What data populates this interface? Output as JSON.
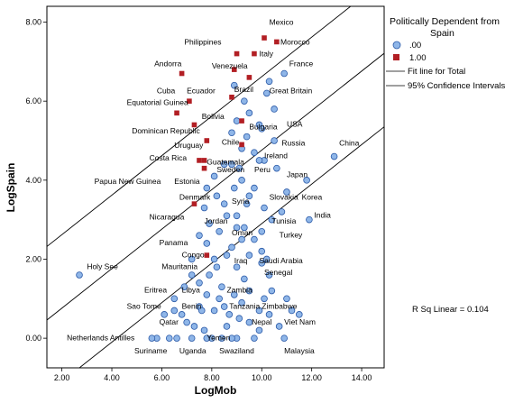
{
  "chart_data": {
    "type": "scatter",
    "xlabel": "LogMob",
    "ylabel": "LogSpain",
    "xlim": [
      1.4,
      14.9
    ],
    "ylim": [
      -0.75,
      8.4
    ],
    "x_ticks": [
      2.0,
      4.0,
      6.0,
      8.0,
      10.0,
      12.0,
      14.0
    ],
    "y_ticks": [
      0.0,
      2.0,
      4.0,
      6.0,
      8.0
    ],
    "x_tick_labels": [
      "2.00",
      "4.00",
      "6.00",
      "8.00",
      "10.00",
      "12.00",
      "14.00"
    ],
    "y_tick_labels": [
      "0.00",
      "2.00",
      "4.00",
      "6.00",
      "8.00"
    ],
    "grid": false,
    "legend_position": "top-right",
    "legend": {
      "title": "Politically Dependent from Spain",
      "entries": [
        ".00",
        "1.00"
      ],
      "lines": [
        "Fit line for Total",
        "95% Confidence Intervals"
      ]
    },
    "annotation": "R Sq Linear = 0.104",
    "colors": {
      "group_0": "#8fb6e8",
      "group_1": "#b21f24",
      "group_0_edge": "#2b5aa8"
    },
    "fit_line": {
      "slope": 0.5,
      "intercept": -0.24
    },
    "ci_offset": 1.86,
    "series": [
      {
        "name": ".00",
        "marker": "circle",
        "points": [
          [
            2.7,
            1.6
          ],
          [
            10.9,
            6.7
          ],
          [
            12.9,
            4.6
          ],
          [
            10.2,
            6.2
          ],
          [
            10.5,
            5.8
          ],
          [
            9.9,
            5.4
          ],
          [
            9.5,
            5.7
          ],
          [
            9.0,
            5.5
          ],
          [
            9.7,
            4.7
          ],
          [
            9.1,
            4.3
          ],
          [
            10.1,
            4.5
          ],
          [
            11.8,
            4.0
          ],
          [
            11.0,
            3.7
          ],
          [
            11.9,
            3.0
          ],
          [
            10.1,
            3.3
          ],
          [
            9.4,
            3.4
          ],
          [
            8.6,
            3.1
          ],
          [
            9.0,
            2.8
          ],
          [
            10.0,
            2.7
          ],
          [
            9.5,
            2.1
          ],
          [
            10.0,
            1.9
          ],
          [
            9.0,
            1.8
          ],
          [
            8.2,
            1.8
          ],
          [
            7.8,
            2.4
          ],
          [
            7.2,
            2.0
          ],
          [
            8.8,
            2.3
          ],
          [
            7.5,
            1.4
          ],
          [
            9.2,
            2.5
          ],
          [
            10.3,
            1.6
          ],
          [
            8.4,
            1.3
          ],
          [
            9.5,
            1.2
          ],
          [
            8.5,
            0.8
          ],
          [
            7.5,
            0.8
          ],
          [
            6.5,
            1.0
          ],
          [
            7.8,
            1.1
          ],
          [
            9.2,
            0.9
          ],
          [
            10.1,
            1.0
          ],
          [
            9.5,
            0.4
          ],
          [
            8.6,
            0.3
          ],
          [
            10.7,
            0.3
          ],
          [
            6.3,
            0.0
          ],
          [
            7.2,
            0.0
          ],
          [
            8.0,
            0.0
          ],
          [
            8.4,
            0.0
          ],
          [
            9.0,
            0.0
          ],
          [
            6.1,
            0.6
          ],
          [
            6.8,
            0.6
          ],
          [
            7.6,
            0.7
          ],
          [
            8.1,
            0.7
          ],
          [
            9.9,
            0.7
          ],
          [
            11.2,
            0.7
          ],
          [
            10.3,
            0.6
          ],
          [
            10.9,
            0.0
          ],
          [
            5.8,
            0.0
          ],
          [
            6.6,
            0.0
          ],
          [
            7.7,
            0.2
          ],
          [
            9.7,
            0.0
          ],
          [
            11.5,
            0.6
          ],
          [
            8.9,
            3.8
          ],
          [
            8.2,
            3.6
          ],
          [
            7.7,
            3.3
          ],
          [
            8.5,
            3.4
          ],
          [
            9.0,
            3.1
          ],
          [
            9.3,
            2.8
          ],
          [
            10.4,
            3.0
          ],
          [
            10.8,
            3.2
          ],
          [
            7.9,
            2.9
          ],
          [
            8.3,
            2.7
          ],
          [
            7.5,
            2.6
          ],
          [
            10.0,
            2.2
          ],
          [
            8.5,
            4.4
          ],
          [
            9.2,
            4.8
          ],
          [
            9.9,
            4.5
          ],
          [
            10.5,
            5.0
          ],
          [
            8.1,
            4.1
          ],
          [
            8.8,
            4.4
          ],
          [
            9.4,
            5.1
          ],
          [
            9.7,
            3.8
          ],
          [
            10.6,
            4.3
          ],
          [
            7.8,
            3.8
          ],
          [
            8.1,
            2.0
          ],
          [
            9.3,
            1.5
          ],
          [
            8.9,
            1.1
          ],
          [
            7.2,
            1.6
          ],
          [
            6.9,
            1.3
          ],
          [
            6.5,
            0.7
          ],
          [
            7.3,
            0.3
          ],
          [
            8.7,
            0.6
          ],
          [
            9.9,
            0.2
          ],
          [
            9.5,
            3.6
          ],
          [
            8.9,
            6.4
          ],
          [
            10.3,
            6.5
          ],
          [
            9.3,
            6.0
          ],
          [
            8.8,
            5.2
          ],
          [
            10.0,
            5.3
          ],
          [
            9.2,
            4.0
          ],
          [
            8.6,
            2.1
          ],
          [
            9.7,
            2.5
          ],
          [
            10.2,
            2.0
          ],
          [
            7.9,
            1.6
          ],
          [
            8.3,
            1.0
          ],
          [
            9.1,
            0.5
          ],
          [
            10.4,
            1.2
          ],
          [
            11.0,
            1.0
          ],
          [
            7.0,
            0.4
          ],
          [
            7.8,
            0.0
          ],
          [
            8.8,
            0.0
          ],
          [
            5.6,
            0.0
          ]
        ]
      },
      {
        "name": "1.00",
        "marker": "square",
        "points": [
          [
            10.1,
            7.6
          ],
          [
            10.6,
            7.5
          ],
          [
            9.0,
            7.2
          ],
          [
            9.7,
            7.2
          ],
          [
            6.8,
            6.7
          ],
          [
            8.9,
            6.8
          ],
          [
            9.5,
            6.6
          ],
          [
            7.1,
            6.0
          ],
          [
            8.8,
            6.1
          ],
          [
            6.6,
            5.7
          ],
          [
            9.2,
            5.5
          ],
          [
            7.3,
            5.4
          ],
          [
            7.8,
            5.0
          ],
          [
            9.2,
            4.9
          ],
          [
            7.5,
            4.5
          ],
          [
            7.7,
            4.5
          ],
          [
            7.7,
            4.3
          ],
          [
            7.3,
            3.4
          ],
          [
            7.8,
            2.1
          ]
        ]
      }
    ],
    "labels": [
      {
        "text": "Mexico",
        "x": 10.3,
        "y": 7.93
      },
      {
        "text": "Philippines",
        "x": 6.9,
        "y": 7.43
      },
      {
        "text": "Morocco",
        "x": 10.75,
        "y": 7.43
      },
      {
        "text": "Italy",
        "x": 9.9,
        "y": 7.13
      },
      {
        "text": "Andorra",
        "x": 5.7,
        "y": 6.88
      },
      {
        "text": "Venezuela",
        "x": 8.0,
        "y": 6.83
      },
      {
        "text": "France",
        "x": 11.1,
        "y": 6.88
      },
      {
        "text": "Cuba",
        "x": 5.8,
        "y": 6.2
      },
      {
        "text": "Ecuador",
        "x": 7.0,
        "y": 6.2
      },
      {
        "text": "Brazil",
        "x": 8.9,
        "y": 6.23
      },
      {
        "text": "Great Britain",
        "x": 10.3,
        "y": 6.2
      },
      {
        "text": "Equatorial Guinea",
        "x": 4.6,
        "y": 5.9
      },
      {
        "text": "Bolivia",
        "x": 7.6,
        "y": 5.55
      },
      {
        "text": "Bulgaria",
        "x": 9.5,
        "y": 5.28
      },
      {
        "text": "USA",
        "x": 11.0,
        "y": 5.35
      },
      {
        "text": "Dominican Republic",
        "x": 4.8,
        "y": 5.18
      },
      {
        "text": "Chile",
        "x": 8.4,
        "y": 4.9
      },
      {
        "text": "Uruguay",
        "x": 6.5,
        "y": 4.82
      },
      {
        "text": "Russia",
        "x": 10.8,
        "y": 4.88
      },
      {
        "text": "China",
        "x": 13.1,
        "y": 4.88
      },
      {
        "text": "Costa Rica",
        "x": 5.5,
        "y": 4.5
      },
      {
        "text": "Guatemala",
        "x": 7.8,
        "y": 4.4
      },
      {
        "text": "Ireland",
        "x": 10.1,
        "y": 4.55
      },
      {
        "text": "Japan",
        "x": 11.0,
        "y": 4.08
      },
      {
        "text": "Sweden",
        "x": 8.2,
        "y": 4.2
      },
      {
        "text": "Peru",
        "x": 9.7,
        "y": 4.2
      },
      {
        "text": "Papua New Guinea",
        "x": 3.3,
        "y": 3.9
      },
      {
        "text": "Estonia",
        "x": 6.5,
        "y": 3.9
      },
      {
        "text": "Slovakia",
        "x": 10.3,
        "y": 3.5
      },
      {
        "text": "Korea",
        "x": 11.6,
        "y": 3.5
      },
      {
        "text": "Denmark",
        "x": 6.7,
        "y": 3.5
      },
      {
        "text": "Syria",
        "x": 8.8,
        "y": 3.4
      },
      {
        "text": "Nicaragua",
        "x": 5.5,
        "y": 3.0
      },
      {
        "text": "Jordan",
        "x": 7.7,
        "y": 2.9
      },
      {
        "text": "Tunisia",
        "x": 10.4,
        "y": 2.9
      },
      {
        "text": "India",
        "x": 12.1,
        "y": 3.05
      },
      {
        "text": "Oman",
        "x": 8.8,
        "y": 2.6
      },
      {
        "text": "Turkey",
        "x": 10.7,
        "y": 2.55
      },
      {
        "text": "Panama",
        "x": 5.9,
        "y": 2.35
      },
      {
        "text": "Congo",
        "x": 6.8,
        "y": 2.05
      },
      {
        "text": "Iraq",
        "x": 8.9,
        "y": 1.9
      },
      {
        "text": "Saudi Arabia",
        "x": 9.9,
        "y": 1.9
      },
      {
        "text": "Holy See",
        "x": 3.0,
        "y": 1.75
      },
      {
        "text": "Mauritania",
        "x": 6.0,
        "y": 1.75
      },
      {
        "text": "Senegal",
        "x": 10.1,
        "y": 1.6
      },
      {
        "text": "Eritrea",
        "x": 5.3,
        "y": 1.15
      },
      {
        "text": "Libya",
        "x": 6.8,
        "y": 1.15
      },
      {
        "text": "Zambia",
        "x": 8.6,
        "y": 1.15
      },
      {
        "text": "Sao Tome",
        "x": 4.6,
        "y": 0.75
      },
      {
        "text": "Benin",
        "x": 6.8,
        "y": 0.75
      },
      {
        "text": "Tanzania",
        "x": 8.7,
        "y": 0.75
      },
      {
        "text": "Zimbabwe",
        "x": 10.0,
        "y": 0.75
      },
      {
        "text": "Qatar",
        "x": 5.9,
        "y": 0.35
      },
      {
        "text": "Nepal",
        "x": 9.6,
        "y": 0.35
      },
      {
        "text": "Viet Nam",
        "x": 10.9,
        "y": 0.35
      },
      {
        "text": "Netherlands Antilles",
        "x": 2.2,
        "y": -0.05
      },
      {
        "text": "Yemen",
        "x": 7.8,
        "y": -0.05
      },
      {
        "text": "Suriname",
        "x": 4.9,
        "y": -0.38
      },
      {
        "text": "Uganda",
        "x": 6.7,
        "y": -0.38
      },
      {
        "text": "Swaziland",
        "x": 8.3,
        "y": -0.38
      },
      {
        "text": "Malaysia",
        "x": 10.9,
        "y": -0.38
      }
    ]
  }
}
